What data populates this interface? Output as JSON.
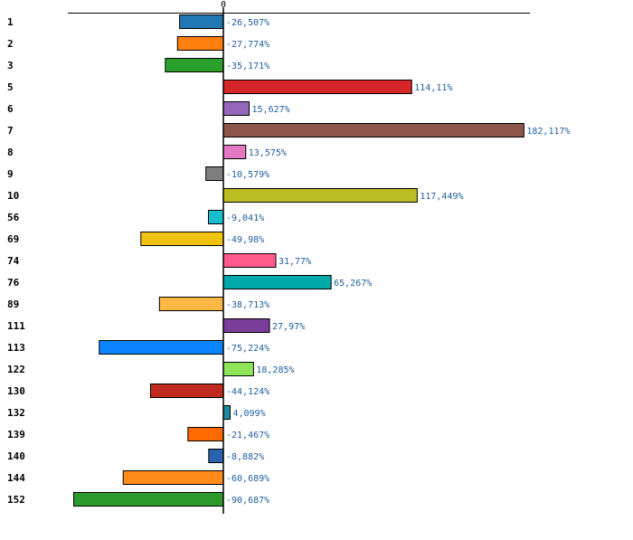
{
  "chart_data": {
    "type": "bar",
    "orientation": "horizontal",
    "xlim": [
      -100,
      200
    ],
    "zero_tick_label": "0",
    "categories": [
      "1",
      "2",
      "3",
      "5",
      "6",
      "7",
      "8",
      "9",
      "10",
      "56",
      "69",
      "74",
      "76",
      "89",
      "111",
      "113",
      "122",
      "130",
      "132",
      "139",
      "140",
      "144",
      "152"
    ],
    "values": [
      -26.507,
      -27.774,
      -35.171,
      114.11,
      15.627,
      182.117,
      13.575,
      -10.579,
      117.449,
      -9.041,
      -49.98,
      31.77,
      65.267,
      -38.713,
      27.97,
      -75.224,
      18.285,
      -44.124,
      4.099,
      -21.467,
      -8.882,
      -60.689,
      -90.687
    ],
    "value_labels": [
      "-26,507%",
      "-27,774%",
      "-35,171%",
      "114,11%",
      "15,627%",
      "182,117%",
      "13,575%",
      "-10,579%",
      "117,449%",
      "-9,041%",
      "-49,98%",
      "31,77%",
      "65,267%",
      "-38,713%",
      "27,97%",
      "-75,224%",
      "18,285%",
      "-44,124%",
      "4,099%",
      "-21,467%",
      "-8,882%",
      "-60,689%",
      "-90,687%"
    ],
    "colors": [
      "#1f77b4",
      "#ff7f0e",
      "#2ca02c",
      "#d62728",
      "#9467bd",
      "#8c564b",
      "#e377c2",
      "#7f7f7f",
      "#bcbd22",
      "#17becf",
      "#f0c30f",
      "#ff5a8c",
      "#00aaaa",
      "#ffb844",
      "#7a3d9a",
      "#0a84ff",
      "#8ee55a",
      "#c0291e",
      "#1f8a9e",
      "#ff6a00",
      "#2a62b0",
      "#ff8c1a",
      "#2c9a2c"
    ],
    "legend": "none",
    "grid": false
  }
}
